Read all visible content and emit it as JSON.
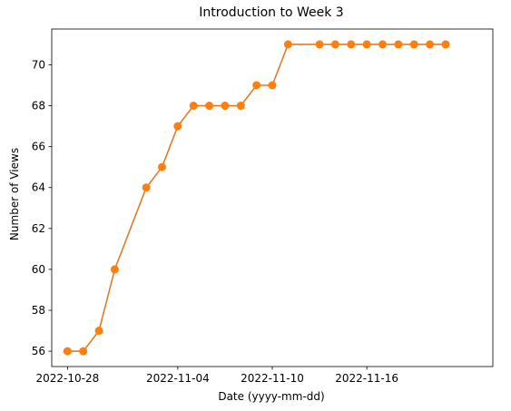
{
  "chart_data": {
    "type": "line",
    "title": "Introduction to Week 3",
    "xlabel": "Date (yyyy-mm-dd)",
    "ylabel": "Number of Views",
    "x_ticks": [
      "2022-10-28",
      "2022-11-04",
      "2022-11-10",
      "2022-11-16"
    ],
    "y_ticks": [
      56,
      58,
      60,
      62,
      64,
      66,
      68,
      70
    ],
    "xlim": [
      "2022-10-27",
      "2022-11-24"
    ],
    "ylim": [
      55.25,
      71.75
    ],
    "grid": false,
    "series": [
      {
        "color": "#ff7f0e",
        "line_color": "#e07b2a",
        "marker": "circle",
        "points": [
          {
            "x": "2022-10-28",
            "y": 56
          },
          {
            "x": "2022-10-29",
            "y": 56
          },
          {
            "x": "2022-10-30",
            "y": 57
          },
          {
            "x": "2022-10-31",
            "y": 60
          },
          {
            "x": "2022-11-02",
            "y": 64
          },
          {
            "x": "2022-11-03",
            "y": 65
          },
          {
            "x": "2022-11-04",
            "y": 67
          },
          {
            "x": "2022-11-05",
            "y": 68
          },
          {
            "x": "2022-11-06",
            "y": 68
          },
          {
            "x": "2022-11-07",
            "y": 68
          },
          {
            "x": "2022-11-08",
            "y": 68
          },
          {
            "x": "2022-11-09",
            "y": 69
          },
          {
            "x": "2022-11-10",
            "y": 69
          },
          {
            "x": "2022-11-11",
            "y": 71
          },
          {
            "x": "2022-11-13",
            "y": 71
          },
          {
            "x": "2022-11-14",
            "y": 71
          },
          {
            "x": "2022-11-15",
            "y": 71
          },
          {
            "x": "2022-11-16",
            "y": 71
          },
          {
            "x": "2022-11-17",
            "y": 71
          },
          {
            "x": "2022-11-18",
            "y": 71
          },
          {
            "x": "2022-11-19",
            "y": 71
          },
          {
            "x": "2022-11-20",
            "y": 71
          },
          {
            "x": "2022-11-21",
            "y": 71
          }
        ]
      }
    ]
  }
}
